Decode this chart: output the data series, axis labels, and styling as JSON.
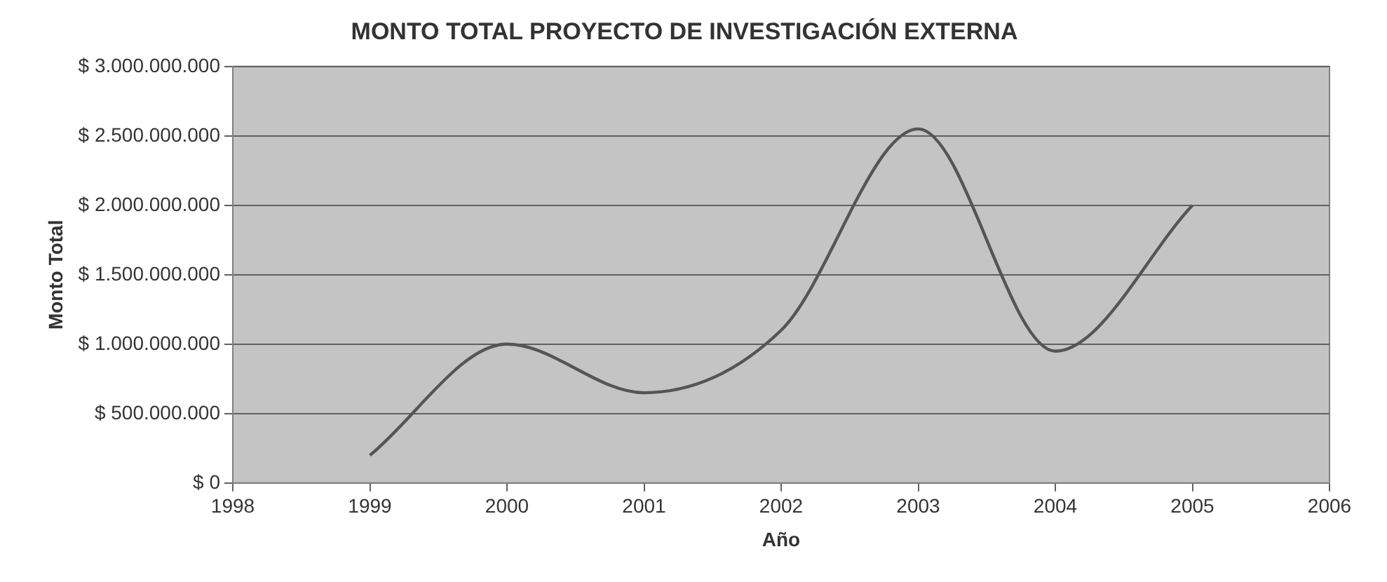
{
  "chart_data": {
    "type": "line",
    "title": "MONTO TOTAL PROYECTO DE INVESTIGACIÓN EXTERNA",
    "xlabel": "Año",
    "ylabel": "Monto Total",
    "x": [
      1999,
      2000,
      2001,
      2002,
      2003,
      2004,
      2005
    ],
    "series": [
      {
        "color": "#555555",
        "values": [
          200000000,
          1000000000,
          650000000,
          1100000000,
          2550000000,
          950000000,
          2000000000
        ]
      }
    ],
    "xlim": [
      1998,
      2006
    ],
    "xticks": [
      1998,
      1999,
      2000,
      2001,
      2002,
      2003,
      2004,
      2005,
      2006
    ],
    "ylim": [
      0,
      3000000000
    ],
    "yticks": [
      {
        "value": 0,
        "label": "$ 0"
      },
      {
        "value": 500000000,
        "label": "$ 500.000.000"
      },
      {
        "value": 1000000000,
        "label": "$ 1.000.000.000"
      },
      {
        "value": 1500000000,
        "label": "$ 1.500.000.000"
      },
      {
        "value": 2000000000,
        "label": "$ 2.000.000.000"
      },
      {
        "value": 2500000000,
        "label": "$ 2.500.000.000"
      },
      {
        "value": 3000000000,
        "label": "$ 3.000.000.000"
      }
    ],
    "grid": "y",
    "legend": false,
    "marker": "none",
    "line_style": "solid"
  }
}
